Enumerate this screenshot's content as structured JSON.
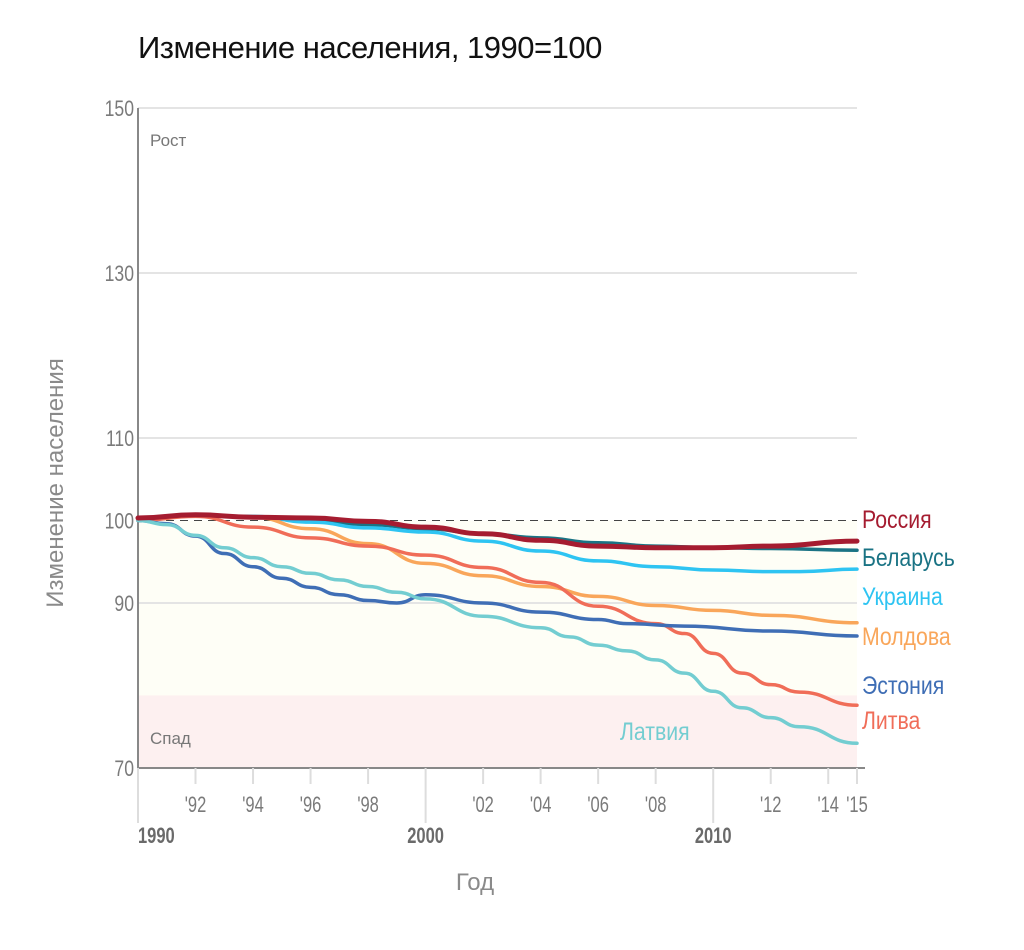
{
  "chart_data": {
    "type": "line",
    "title": "Изменение населения, 1990=100",
    "xlabel": "Год",
    "ylabel": "Изменение населения",
    "ylim": [
      70,
      150
    ],
    "xlim": [
      1990,
      2015
    ],
    "yticks": [
      70,
      90,
      100,
      110,
      130,
      150
    ],
    "xticks": [
      {
        "value": 1990,
        "label": "1990",
        "major": true
      },
      {
        "value": 1992,
        "label": "'92"
      },
      {
        "value": 1994,
        "label": "'94"
      },
      {
        "value": 1996,
        "label": "'96"
      },
      {
        "value": 1998,
        "label": "'98"
      },
      {
        "value": 2000,
        "label": "2000",
        "major": true
      },
      {
        "value": 2002,
        "label": "'02"
      },
      {
        "value": 2004,
        "label": "'04"
      },
      {
        "value": 2006,
        "label": "'06"
      },
      {
        "value": 2008,
        "label": "'08"
      },
      {
        "value": 2010,
        "label": "2010",
        "major": true
      },
      {
        "value": 2012,
        "label": "'12"
      },
      {
        "value": 2014,
        "label": "'14"
      },
      {
        "value": 2015,
        "label": "'15"
      }
    ],
    "zones": {
      "growth_label": "Рост",
      "decline_label": "Спад",
      "decline_threshold": 78.8
    },
    "reference_line": 100,
    "grid": true,
    "series": [
      {
        "name": "Беларусь",
        "color": "#1a7384",
        "width": 3.5,
        "x": [
          1990,
          1992,
          1994,
          1996,
          1998,
          2000,
          2002,
          2004,
          2006,
          2008,
          2010,
          2012,
          2015
        ],
        "y": [
          100.3,
          100.7,
          100.4,
          100.0,
          99.5,
          99.0,
          98.4,
          97.9,
          97.3,
          96.9,
          96.7,
          96.6,
          96.4
        ]
      },
      {
        "name": "Украина",
        "color": "#2ec4f2",
        "width": 3.5,
        "x": [
          1990,
          1992,
          1994,
          1996,
          1998,
          2000,
          2002,
          2004,
          2006,
          2008,
          2010,
          2012,
          2013,
          2015
        ],
        "y": [
          100.0,
          100.6,
          100.5,
          99.8,
          99.1,
          98.6,
          97.5,
          96.3,
          95.1,
          94.4,
          94.0,
          93.8,
          93.8,
          94.1
        ]
      },
      {
        "name": "Молдова",
        "color": "#f9a65a",
        "width": 3.5,
        "x": [
          1990,
          1992,
          1994,
          1996,
          1998,
          2000,
          2002,
          2004,
          2006,
          2008,
          2010,
          2012,
          2015
        ],
        "y": [
          100.0,
          100.7,
          100.4,
          99.0,
          97.2,
          94.8,
          93.3,
          92.0,
          90.8,
          89.7,
          89.1,
          88.5,
          87.6
        ]
      },
      {
        "name": "Литва",
        "color": "#f06d58",
        "width": 3.5,
        "x": [
          1990,
          1992,
          1994,
          1996,
          1998,
          2000,
          2002,
          2004,
          2006,
          2008,
          2009,
          2010,
          2011,
          2012,
          2013,
          2015
        ],
        "y": [
          100.0,
          100.5,
          99.2,
          97.9,
          96.9,
          95.8,
          94.3,
          92.5,
          89.6,
          87.5,
          86.3,
          83.9,
          81.5,
          80.1,
          79.2,
          77.6
        ]
      },
      {
        "name": "Эстония",
        "color": "#3f6eb5",
        "width": 3.5,
        "x": [
          1990,
          1991,
          1992,
          1993,
          1994,
          1995,
          1996,
          1997,
          1998,
          1999,
          2000,
          2002,
          2004,
          2006,
          2007,
          2009,
          2012,
          2015
        ],
        "y": [
          100.0,
          99.6,
          98.1,
          96.0,
          94.4,
          93.0,
          91.9,
          91.0,
          90.3,
          90.0,
          91.0,
          90.0,
          88.9,
          88.0,
          87.5,
          87.2,
          86.6,
          86.0
        ]
      },
      {
        "name": "Латвия",
        "color": "#73cdd1",
        "width": 3.5,
        "x": [
          1990,
          1991,
          1992,
          1993,
          1994,
          1995,
          1996,
          1997,
          1998,
          1999,
          2000,
          2002,
          2004,
          2005,
          2006,
          2007,
          2008,
          2009,
          2010,
          2011,
          2012,
          2013,
          2015
        ],
        "y": [
          100.0,
          99.5,
          98.2,
          96.7,
          95.5,
          94.4,
          93.6,
          92.8,
          92.0,
          91.3,
          90.5,
          88.4,
          87.0,
          85.9,
          84.9,
          84.2,
          83.1,
          81.5,
          79.3,
          77.3,
          76.1,
          75.0,
          73.0
        ]
      },
      {
        "name": "Россия",
        "color": "#a51c30",
        "width": 5,
        "x": [
          1990,
          1992,
          1994,
          1996,
          1998,
          2000,
          2002,
          2004,
          2006,
          2008,
          2010,
          2012,
          2015
        ],
        "y": [
          100.3,
          100.7,
          100.4,
          100.3,
          99.9,
          99.2,
          98.4,
          97.6,
          96.9,
          96.7,
          96.7,
          96.9,
          97.5
        ]
      }
    ]
  }
}
